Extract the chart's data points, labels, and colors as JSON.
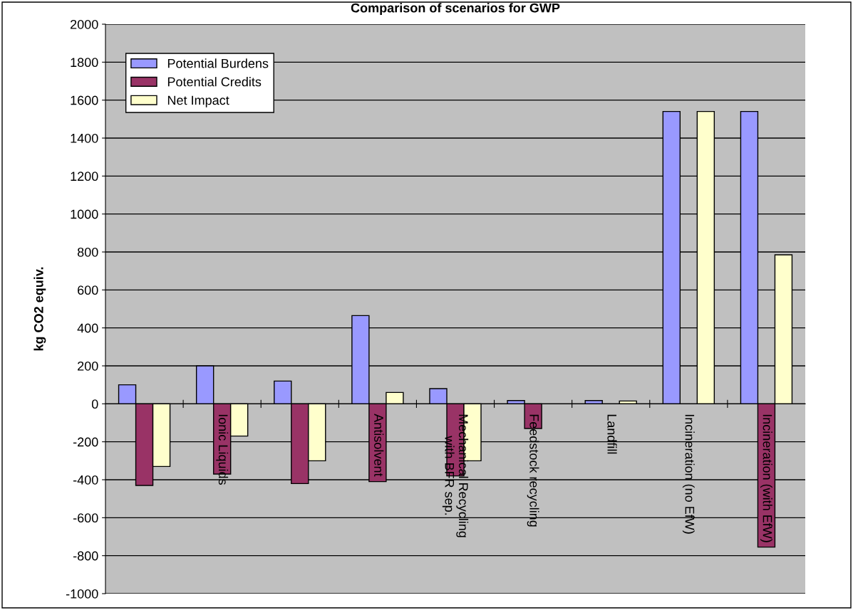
{
  "chart_data": {
    "type": "bar",
    "title": "Comparison of scenarios for GWP",
    "ylabel": "kg CO2 equiv.",
    "categories": [
      null,
      "Ionic Liquids",
      null,
      "Antisolvent",
      "Mechanical Recycling\nwith BFR sep.",
      "Feedstock recycling",
      "Landfill",
      "Incineration (no EfW)",
      "Incineration (with EfW)"
    ],
    "series": [
      {
        "name": "Potential Burdens",
        "color": "#9999ff",
        "values": [
          100,
          200,
          120,
          465,
          80,
          17,
          17,
          1540,
          1540
        ]
      },
      {
        "name": "Potential Credits",
        "color": "#993366",
        "values": [
          -430,
          -370,
          -420,
          -410,
          -380,
          -130,
          null,
          null,
          -755
        ]
      },
      {
        "name": "Net Impact",
        "color": "#ffffcc",
        "values": [
          -330,
          -170,
          -300,
          60,
          -300,
          null,
          15,
          1540,
          785
        ]
      }
    ],
    "ylim": [
      -1000,
      2000
    ],
    "yticks": [
      -1000,
      -800,
      -600,
      -400,
      -200,
      0,
      200,
      400,
      600,
      800,
      1000,
      1200,
      1400,
      1600,
      1800,
      2000
    ],
    "grid": "y",
    "legend": "top left"
  }
}
